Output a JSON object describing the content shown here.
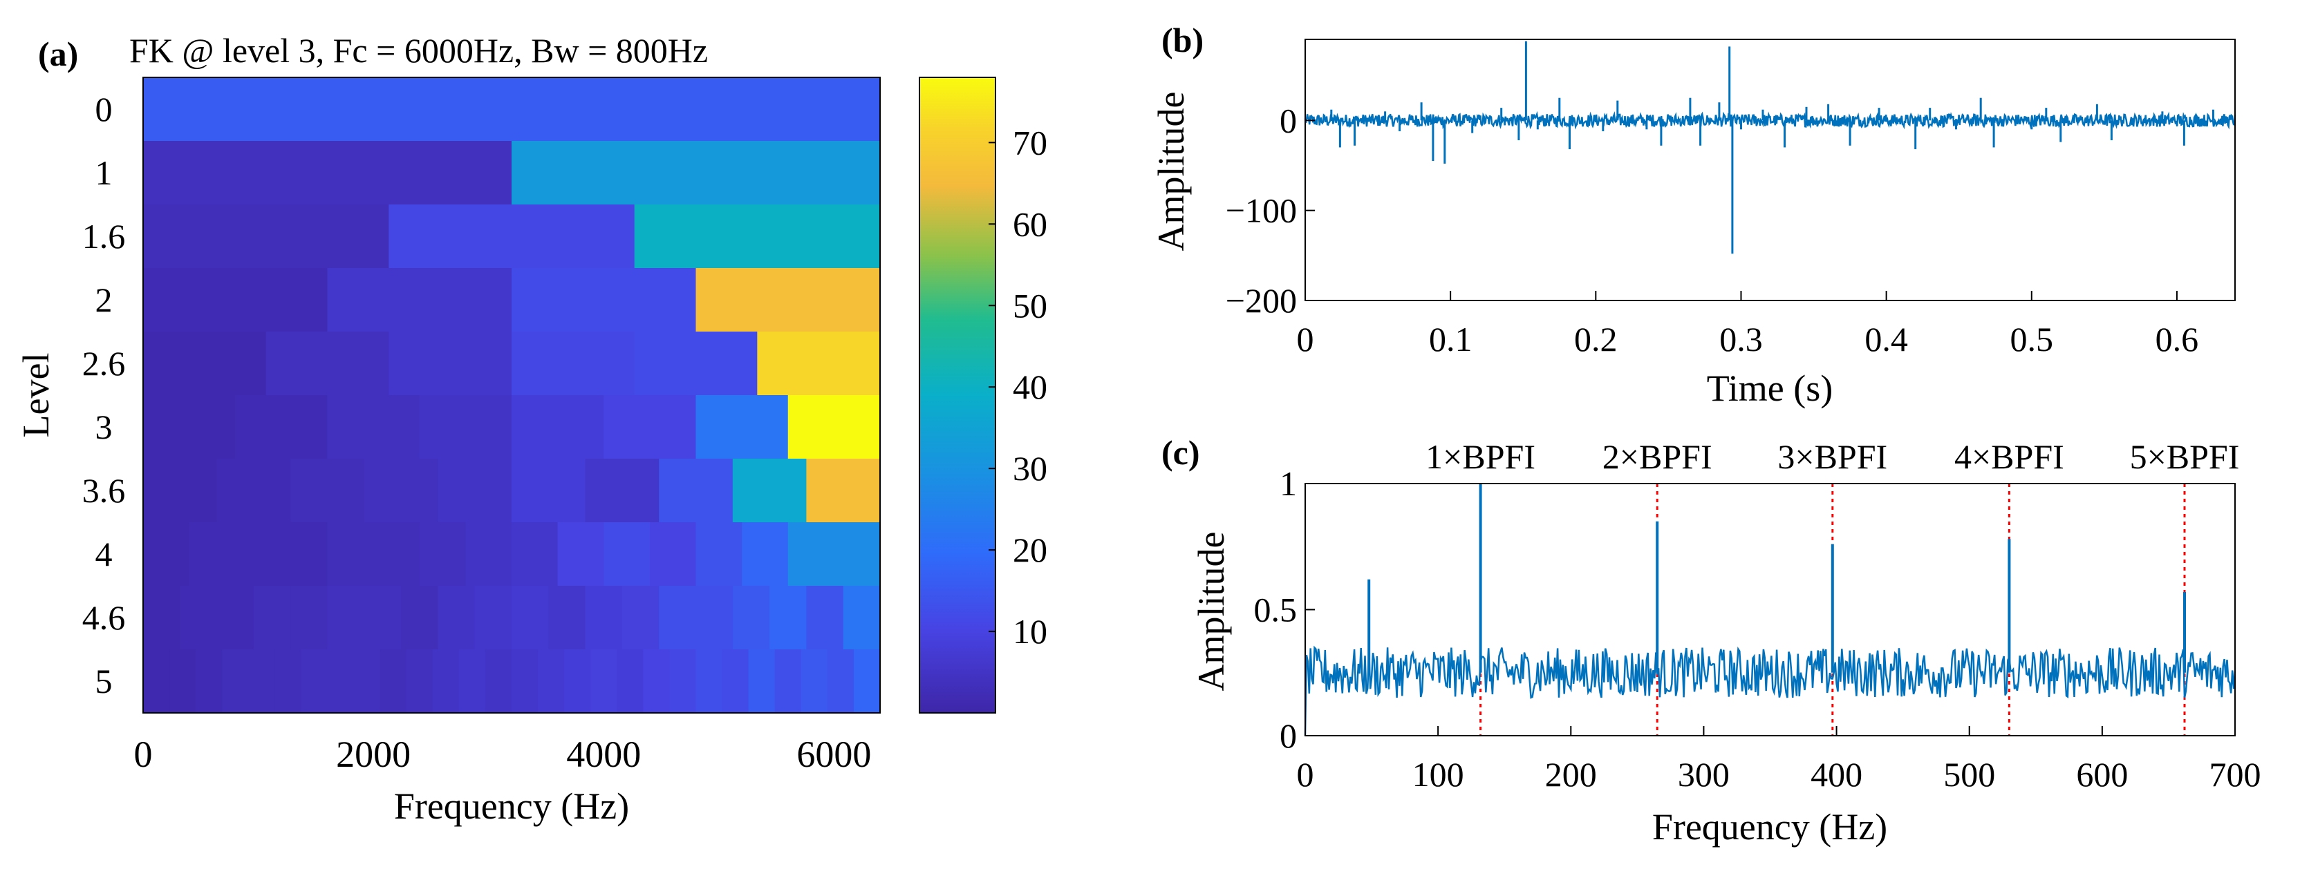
{
  "chart_data": [
    {
      "panel": "(a)",
      "type": "heatmap",
      "title": "FK @ level 3, Fc = 6000Hz, Bw = 800Hz",
      "xlabel": "Frequency (Hz)",
      "ylabel": "Level",
      "xlim": [
        0,
        6400
      ],
      "xticks": [
        0,
        2000,
        4000,
        6000
      ],
      "ylevels": [
        "0",
        "1",
        "1.6",
        "2",
        "2.6",
        "3",
        "3.6",
        "4",
        "4.6",
        "5"
      ],
      "colorbar": {
        "ticks": [
          10,
          20,
          30,
          40,
          50,
          60,
          70
        ],
        "range": [
          0,
          78
        ]
      },
      "values": [
        [
          16
        ],
        [
          4,
          32
        ],
        [
          3,
          11,
          40
        ],
        [
          2,
          6,
          12,
          66
        ],
        [
          1,
          4,
          6,
          11,
          12,
          72
        ],
        [
          1,
          2,
          4,
          5,
          8,
          10,
          22,
          78
        ],
        [
          1,
          2,
          3,
          4,
          5,
          8,
          6,
          14,
          37,
          66
        ],
        [
          1,
          2,
          2,
          2,
          3,
          3,
          4,
          5,
          6,
          10,
          12,
          10,
          14,
          18,
          28,
          28
        ],
        [
          1,
          2,
          2,
          3,
          3,
          4,
          4,
          3,
          5,
          6,
          7,
          6,
          8,
          9,
          13,
          13,
          15,
          18,
          14,
          22
        ],
        [
          1,
          1,
          2,
          3,
          3,
          3,
          4,
          4,
          4,
          3,
          4,
          5,
          6,
          5,
          6,
          7,
          8,
          9,
          8,
          10,
          11,
          13,
          12,
          16,
          13,
          15,
          14,
          18
        ]
      ]
    },
    {
      "panel": "(b)",
      "type": "line",
      "xlabel": "Time (s)",
      "ylabel": "Amplitude",
      "xlim": [
        0,
        0.64
      ],
      "ylim": [
        -200,
        90
      ],
      "xticks": [
        "0",
        "0.1",
        "0.2",
        "0.3",
        "0.4",
        "0.5",
        "0.6"
      ],
      "yticks": [
        "0",
        "−100",
        "−200"
      ],
      "spikes": [
        [
          0.018,
          12
        ],
        [
          0.024,
          -30
        ],
        [
          0.034,
          -28
        ],
        [
          0.055,
          10
        ],
        [
          0.065,
          -12
        ],
        [
          0.08,
          20
        ],
        [
          0.088,
          -45
        ],
        [
          0.096,
          -48
        ],
        [
          0.115,
          -14
        ],
        [
          0.135,
          14
        ],
        [
          0.147,
          -22
        ],
        [
          0.152,
          88
        ],
        [
          0.16,
          -10
        ],
        [
          0.175,
          25
        ],
        [
          0.182,
          -32
        ],
        [
          0.205,
          -12
        ],
        [
          0.215,
          22
        ],
        [
          0.235,
          -10
        ],
        [
          0.245,
          -28
        ],
        [
          0.265,
          25
        ],
        [
          0.272,
          -28
        ],
        [
          0.285,
          20
        ],
        [
          0.292,
          82
        ],
        [
          0.294,
          -148
        ],
        [
          0.3,
          -10
        ],
        [
          0.315,
          12
        ],
        [
          0.33,
          -30
        ],
        [
          0.345,
          15
        ],
        [
          0.36,
          18
        ],
        [
          0.375,
          -28
        ],
        [
          0.395,
          14
        ],
        [
          0.42,
          -32
        ],
        [
          0.43,
          14
        ],
        [
          0.448,
          -10
        ],
        [
          0.465,
          25
        ],
        [
          0.474,
          -30
        ],
        [
          0.5,
          -10
        ],
        [
          0.51,
          14
        ],
        [
          0.52,
          -24
        ],
        [
          0.545,
          18
        ],
        [
          0.555,
          -22
        ],
        [
          0.59,
          10
        ],
        [
          0.605,
          -28
        ],
        [
          0.625,
          12
        ]
      ]
    },
    {
      "panel": "(c)",
      "type": "line",
      "xlabel": "Frequency (Hz)",
      "ylabel": "Amplitude",
      "xlim": [
        0,
        700
      ],
      "ylim": [
        0,
        1
      ],
      "xticks": [
        "0",
        "100",
        "200",
        "300",
        "400",
        "500",
        "600",
        "700"
      ],
      "yticks": [
        "0",
        "0.5",
        "1"
      ],
      "baseline": 0.25,
      "peaks": [
        [
          48,
          0.62
        ],
        [
          132,
          1.0
        ],
        [
          265,
          0.85
        ],
        [
          397,
          0.76
        ],
        [
          530,
          0.78
        ],
        [
          662,
          0.57
        ]
      ],
      "bpfi_lines": [
        132,
        265,
        397,
        530,
        662
      ],
      "bpfi_labels": [
        "1×BPFI",
        "2×BPFI",
        "3×BPFI",
        "4×BPFI",
        "5×BPFI"
      ]
    }
  ],
  "colors": {
    "signal": "#0072BD",
    "bpfi_marker": "#FF0000",
    "axes": "#000000"
  }
}
